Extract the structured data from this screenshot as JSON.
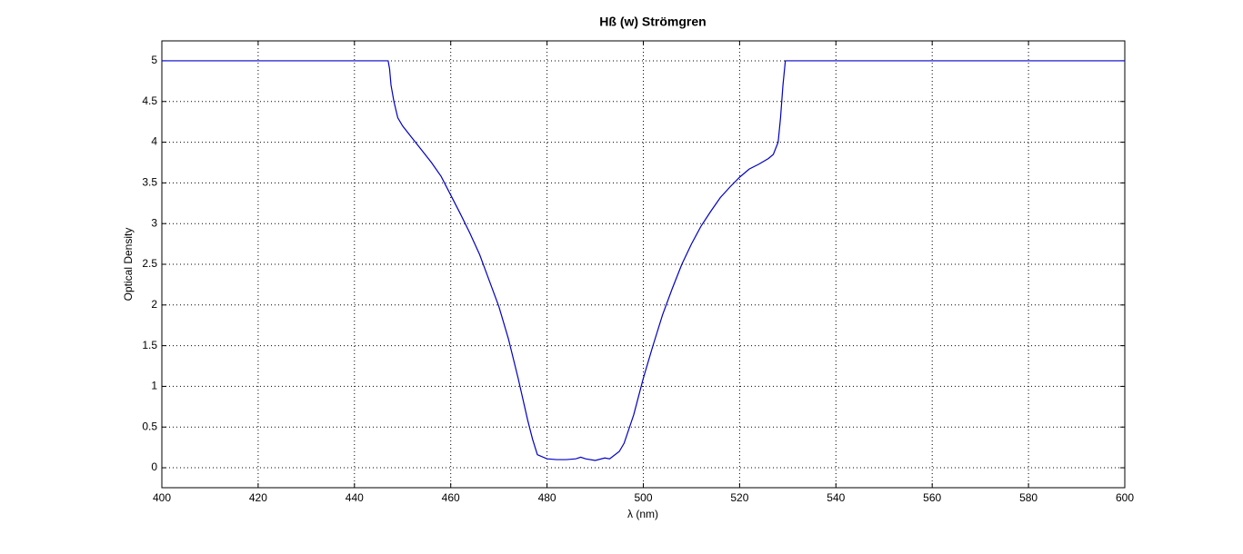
{
  "chart_data": {
    "type": "line",
    "title": "Hß (w) Strömgren",
    "x_label": "λ (nm)",
    "y_label": "Optical Density",
    "x": [
      400,
      447,
      447.3,
      447.6,
      448.2,
      449,
      450,
      452,
      454,
      456,
      458,
      460,
      462,
      464,
      466,
      468,
      470,
      472,
      474,
      476,
      477,
      478,
      480,
      482,
      484,
      486,
      487,
      488,
      490,
      492,
      493,
      495,
      496,
      498,
      500,
      502,
      504,
      506,
      508,
      510,
      512,
      514,
      516,
      518,
      520,
      522,
      524,
      526,
      527,
      528,
      528.5,
      529,
      529.5,
      600
    ],
    "series": [
      {
        "color": "#0000c8",
        "values": [
          5,
          5,
          4.9,
          4.7,
          4.5,
          4.3,
          4.2,
          4.05,
          3.9,
          3.75,
          3.58,
          3.35,
          3.12,
          2.88,
          2.62,
          2.3,
          1.98,
          1.58,
          1.1,
          0.58,
          0.35,
          0.16,
          0.11,
          0.1,
          0.1,
          0.11,
          0.13,
          0.11,
          0.09,
          0.12,
          0.11,
          0.2,
          0.3,
          0.65,
          1.1,
          1.5,
          1.88,
          2.2,
          2.5,
          2.75,
          2.97,
          3.15,
          3.32,
          3.45,
          3.57,
          3.67,
          3.73,
          3.8,
          3.85,
          4.0,
          4.3,
          4.7,
          5,
          5
        ]
      }
    ],
    "xlim": [
      400,
      600
    ],
    "ylim": [
      -0.245,
      5.245
    ],
    "xticks": [
      400,
      420,
      440,
      460,
      480,
      500,
      520,
      540,
      560,
      580,
      600
    ],
    "yticks": [
      0,
      0.5,
      1,
      1.5,
      2,
      2.5,
      3,
      3.5,
      4,
      4.5,
      5
    ],
    "grid": true
  }
}
